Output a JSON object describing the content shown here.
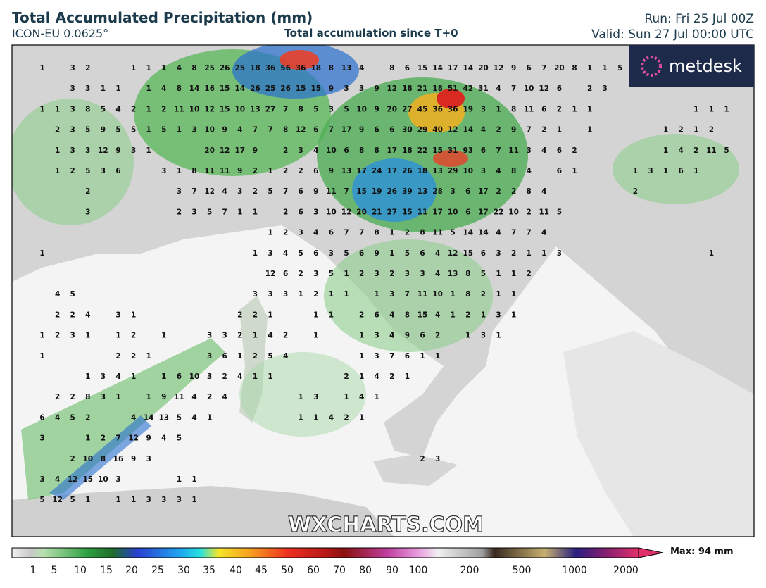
{
  "header": {
    "title": "Total Accumulated Precipitation (mm)",
    "model": "ICON-EU 0.0625°",
    "subtitle": "Total accumulation since T+0",
    "run": "Run: Fri 25 Jul 00Z",
    "valid": "Valid: Sun 27 Jul 00:00 UTC"
  },
  "logo": "metdesk",
  "map": {
    "watermark": "WXCHARTS.COM",
    "grid_labels": [
      [
        1,
        null,
        3,
        2,
        null,
        null,
        1,
        1,
        1,
        4,
        8,
        25,
        26,
        25,
        18,
        36,
        56,
        36,
        18,
        8,
        13,
        4,
        null,
        8,
        6,
        15,
        14,
        17,
        14,
        20,
        12,
        9,
        6,
        7,
        20,
        8,
        1,
        1,
        5
      ],
      [
        null,
        null,
        3,
        3,
        1,
        1,
        null,
        1,
        4,
        8,
        14,
        16,
        15,
        14,
        26,
        25,
        26,
        15,
        15,
        9,
        3,
        3,
        9,
        12,
        18,
        21,
        18,
        51,
        42,
        31,
        4,
        7,
        10,
        12,
        6,
        null,
        2,
        3
      ],
      [
        1,
        1,
        3,
        8,
        5,
        4,
        2,
        1,
        2,
        11,
        10,
        12,
        15,
        10,
        13,
        27,
        7,
        8,
        5,
        3,
        5,
        10,
        9,
        20,
        27,
        45,
        36,
        36,
        19,
        3,
        1,
        8,
        11,
        6,
        2,
        1,
        1,
        null,
        null,
        null,
        null,
        null,
        null,
        1,
        1,
        1
      ],
      [
        null,
        2,
        3,
        5,
        9,
        5,
        5,
        1,
        5,
        1,
        3,
        10,
        9,
        4,
        7,
        7,
        8,
        12,
        6,
        7,
        17,
        9,
        6,
        6,
        30,
        29,
        40,
        12,
        14,
        4,
        2,
        9,
        7,
        2,
        1,
        null,
        1,
        null,
        null,
        null,
        null,
        1,
        2,
        1,
        2
      ],
      [
        null,
        1,
        3,
        3,
        12,
        9,
        3,
        1,
        null,
        null,
        null,
        20,
        12,
        17,
        9,
        null,
        2,
        3,
        4,
        10,
        6,
        8,
        8,
        17,
        18,
        22,
        15,
        31,
        93,
        6,
        7,
        11,
        3,
        4,
        6,
        2,
        null,
        null,
        null,
        null,
        null,
        1,
        4,
        2,
        11,
        5
      ],
      [
        null,
        1,
        2,
        5,
        3,
        6,
        null,
        null,
        3,
        1,
        8,
        11,
        11,
        9,
        2,
        1,
        2,
        2,
        6,
        9,
        13,
        17,
        24,
        17,
        26,
        18,
        13,
        29,
        10,
        3,
        4,
        8,
        4,
        null,
        6,
        1,
        null,
        null,
        null,
        1,
        3,
        1,
        6,
        1
      ],
      [
        null,
        null,
        null,
        2,
        null,
        null,
        null,
        null,
        null,
        3,
        7,
        12,
        4,
        3,
        2,
        5,
        7,
        6,
        9,
        11,
        7,
        15,
        19,
        26,
        39,
        13,
        28,
        3,
        6,
        17,
        2,
        2,
        8,
        4,
        null,
        null,
        null,
        null,
        null,
        2
      ],
      [
        null,
        null,
        null,
        3,
        null,
        null,
        null,
        null,
        null,
        2,
        3,
        5,
        7,
        1,
        1,
        null,
        2,
        6,
        3,
        10,
        12,
        20,
        21,
        27,
        15,
        11,
        17,
        10,
        6,
        17,
        22,
        10,
        2,
        11,
        5
      ],
      [
        null,
        null,
        null,
        null,
        null,
        null,
        null,
        null,
        null,
        null,
        null,
        null,
        null,
        null,
        null,
        1,
        2,
        3,
        4,
        6,
        7,
        7,
        8,
        1,
        2,
        8,
        11,
        5,
        14,
        14,
        4,
        7,
        7,
        4
      ],
      [
        1,
        null,
        null,
        null,
        null,
        null,
        null,
        null,
        null,
        null,
        null,
        null,
        null,
        null,
        1,
        3,
        4,
        5,
        6,
        3,
        5,
        6,
        9,
        1,
        5,
        6,
        4,
        12,
        15,
        6,
        3,
        2,
        1,
        1,
        3,
        null,
        null,
        null,
        null,
        null,
        null,
        null,
        null,
        null,
        1
      ],
      [
        null,
        null,
        null,
        null,
        null,
        null,
        null,
        null,
        null,
        null,
        null,
        null,
        null,
        null,
        null,
        12,
        6,
        2,
        3,
        5,
        1,
        2,
        3,
        2,
        3,
        3,
        4,
        13,
        8,
        5,
        1,
        1,
        2
      ],
      [
        null,
        4,
        5,
        null,
        null,
        null,
        null,
        null,
        null,
        null,
        null,
        null,
        null,
        null,
        3,
        3,
        3,
        1,
        2,
        1,
        1,
        null,
        1,
        3,
        7,
        11,
        10,
        1,
        8,
        2,
        1,
        1
      ],
      [
        null,
        2,
        2,
        4,
        null,
        3,
        1,
        null,
        null,
        null,
        null,
        null,
        null,
        2,
        2,
        1,
        null,
        null,
        1,
        1,
        null,
        2,
        6,
        4,
        8,
        15,
        4,
        1,
        2,
        1,
        3,
        1
      ],
      [
        1,
        2,
        3,
        1,
        null,
        1,
        2,
        null,
        1,
        null,
        null,
        3,
        3,
        2,
        1,
        4,
        2,
        null,
        1,
        null,
        null,
        1,
        3,
        4,
        9,
        6,
        2,
        null,
        1,
        3,
        1
      ],
      [
        1,
        null,
        null,
        null,
        null,
        2,
        2,
        1,
        null,
        null,
        null,
        3,
        6,
        1,
        2,
        5,
        4,
        null,
        null,
        null,
        null,
        1,
        3,
        7,
        6,
        1,
        1
      ],
      [
        null,
        null,
        null,
        1,
        3,
        4,
        1,
        null,
        1,
        6,
        10,
        3,
        2,
        4,
        1,
        1,
        null,
        null,
        null,
        null,
        2,
        1,
        4,
        2,
        1
      ],
      [
        null,
        2,
        2,
        8,
        3,
        1,
        null,
        1,
        9,
        11,
        4,
        2,
        4,
        null,
        null,
        null,
        null,
        1,
        3,
        null,
        1,
        4,
        1
      ],
      [
        6,
        4,
        5,
        2,
        null,
        null,
        4,
        14,
        13,
        5,
        4,
        1,
        null,
        null,
        null,
        null,
        null,
        1,
        1,
        4,
        2,
        1
      ],
      [
        3,
        null,
        null,
        1,
        2,
        7,
        12,
        9,
        4,
        5
      ],
      [
        null,
        null,
        2,
        10,
        8,
        16,
        9,
        3,
        null,
        null,
        null,
        null,
        null,
        null,
        null,
        null,
        null,
        null,
        null,
        null,
        null,
        null,
        null,
        null,
        null,
        2,
        3
      ],
      [
        3,
        4,
        12,
        15,
        10,
        3,
        null,
        null,
        null,
        1,
        1
      ],
      [
        5,
        12,
        5,
        1,
        null,
        1,
        1,
        3,
        3,
        3,
        1
      ]
    ]
  },
  "colorbar": {
    "labels": [
      1,
      5,
      10,
      15,
      20,
      25,
      30,
      35,
      40,
      45,
      50,
      60,
      70,
      80,
      90,
      100,
      200,
      500,
      1000,
      2000
    ],
    "max_label": "Max: 94 mm"
  }
}
